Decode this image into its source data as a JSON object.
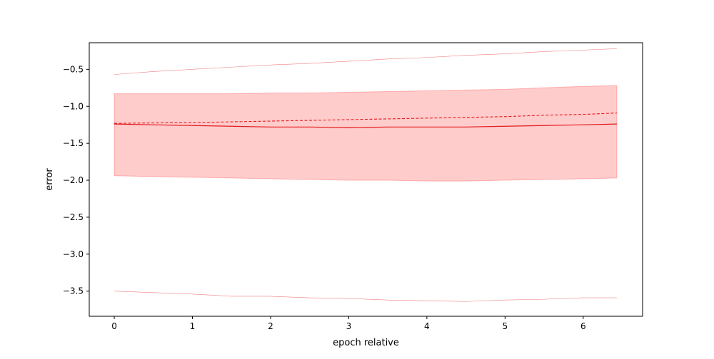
{
  "chart_data": {
    "type": "line",
    "xlabel": "epoch relative",
    "ylabel": "error",
    "xlim": [
      -0.32,
      6.76
    ],
    "ylim": [
      -3.84,
      -0.14
    ],
    "xticks": [
      0,
      1,
      2,
      3,
      4,
      5,
      6
    ],
    "xtick_labels": [
      "0",
      "1",
      "2",
      "3",
      "4",
      "5",
      "6"
    ],
    "yticks": [
      -3.5,
      -3.0,
      -2.5,
      -2.0,
      -1.5,
      -1.0,
      -0.5
    ],
    "ytick_labels": [
      "−3.5",
      "−3.0",
      "−2.5",
      "−2.0",
      "−1.5",
      "−1.0",
      "−0.5"
    ],
    "grid": false,
    "legend": null,
    "colors": {
      "main": "#e31a1c",
      "band": "#ff0000",
      "upper": "#f08080",
      "lower": "#f08080"
    },
    "x": [
      0,
      0.5,
      1.0,
      1.5,
      2.0,
      2.5,
      3.0,
      3.5,
      4.0,
      4.5,
      5.0,
      5.5,
      6.0,
      6.43
    ],
    "series": [
      {
        "role": "mean",
        "style": "solid",
        "values": [
          -1.24,
          -1.25,
          -1.26,
          -1.27,
          -1.28,
          -1.28,
          -1.29,
          -1.28,
          -1.28,
          -1.28,
          -1.27,
          -1.26,
          -1.25,
          -1.24
        ]
      },
      {
        "role": "trend",
        "style": "dashed",
        "values": [
          -1.23,
          -1.225,
          -1.22,
          -1.21,
          -1.2,
          -1.19,
          -1.18,
          -1.17,
          -1.16,
          -1.15,
          -1.14,
          -1.12,
          -1.11,
          -1.09
        ]
      },
      {
        "role": "upper-extreme",
        "style": "thin",
        "values": [
          -0.57,
          -0.53,
          -0.5,
          -0.47,
          -0.44,
          -0.42,
          -0.39,
          -0.36,
          -0.34,
          -0.31,
          -0.29,
          -0.26,
          -0.24,
          -0.22
        ]
      },
      {
        "role": "lower-extreme",
        "style": "thin",
        "values": [
          -3.5,
          -3.52,
          -3.54,
          -3.57,
          -3.57,
          -3.59,
          -3.6,
          -3.62,
          -3.63,
          -3.64,
          -3.62,
          -3.61,
          -3.59,
          -3.59
        ]
      }
    ],
    "band": {
      "upper": [
        -0.83,
        -0.83,
        -0.83,
        -0.83,
        -0.82,
        -0.82,
        -0.81,
        -0.8,
        -0.79,
        -0.78,
        -0.77,
        -0.75,
        -0.73,
        -0.72
      ],
      "lower": [
        -1.94,
        -1.95,
        -1.96,
        -1.97,
        -1.98,
        -1.99,
        -2.0,
        -2.0,
        -2.01,
        -2.01,
        -2.0,
        -1.99,
        -1.98,
        -1.97
      ]
    }
  }
}
